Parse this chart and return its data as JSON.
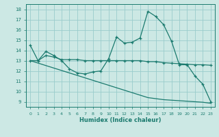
{
  "xlabel": "Humidex (Indice chaleur)",
  "bg_color": "#cce8e4",
  "grid_color": "#99cccc",
  "line_color": "#1a7a6e",
  "xlim": [
    -0.5,
    23.5
  ],
  "ylim": [
    8.5,
    18.5
  ],
  "xticks": [
    0,
    1,
    2,
    3,
    4,
    5,
    6,
    7,
    8,
    9,
    10,
    11,
    12,
    13,
    14,
    15,
    16,
    17,
    18,
    19,
    20,
    21,
    22,
    23
  ],
  "yticks": [
    9,
    10,
    11,
    12,
    13,
    14,
    15,
    16,
    17,
    18
  ],
  "line1_x": [
    0,
    1,
    2,
    3,
    4,
    5,
    6,
    7,
    8,
    9,
    10,
    11,
    12,
    13,
    14,
    15,
    16,
    17,
    18,
    19,
    20,
    21,
    22,
    23
  ],
  "line1_y": [
    14.5,
    13.0,
    13.9,
    13.5,
    13.0,
    12.2,
    11.8,
    11.7,
    11.9,
    12.0,
    13.2,
    15.3,
    14.7,
    14.8,
    15.2,
    17.8,
    17.3,
    16.5,
    14.9,
    12.6,
    12.6,
    11.5,
    10.7,
    9.0
  ],
  "line2_x": [
    0,
    1,
    2,
    3,
    4,
    5,
    6,
    7,
    8,
    9,
    10,
    11,
    12,
    13,
    14,
    15,
    16,
    17,
    18,
    19,
    20,
    21,
    22,
    23
  ],
  "line2_y": [
    13.0,
    13.0,
    13.5,
    13.35,
    13.1,
    13.1,
    13.1,
    13.0,
    13.0,
    13.0,
    13.0,
    13.0,
    13.0,
    13.0,
    13.0,
    12.9,
    12.9,
    12.8,
    12.75,
    12.7,
    12.65,
    12.6,
    12.6,
    12.55
  ],
  "line3_x": [
    0,
    1,
    2,
    3,
    4,
    5,
    6,
    7,
    8,
    9,
    10,
    11,
    12,
    13,
    14,
    15,
    16,
    17,
    18,
    19,
    20,
    21,
    22,
    23
  ],
  "line3_y": [
    13.0,
    12.76,
    12.52,
    12.28,
    12.04,
    11.8,
    11.56,
    11.32,
    11.08,
    10.84,
    10.6,
    10.36,
    10.12,
    9.88,
    9.64,
    9.4,
    9.3,
    9.2,
    9.15,
    9.1,
    9.05,
    9.0,
    8.95,
    8.85
  ]
}
